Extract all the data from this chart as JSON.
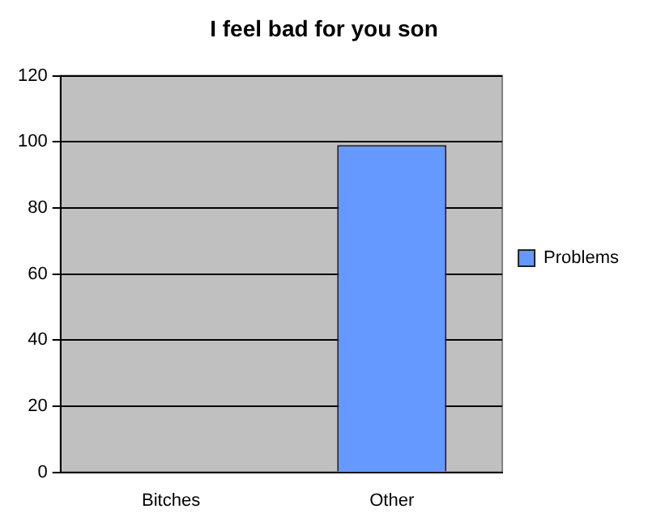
{
  "chart_data": {
    "type": "bar",
    "title": "I feel bad for you son",
    "categories": [
      "Bitches",
      "Other"
    ],
    "series": [
      {
        "name": "Problems",
        "color": "#6699ff",
        "values": [
          0,
          99
        ]
      }
    ],
    "ylim": [
      0,
      120
    ],
    "yticks": [
      0,
      20,
      40,
      60,
      80,
      100,
      120
    ],
    "grid": "y",
    "legend": "right"
  }
}
